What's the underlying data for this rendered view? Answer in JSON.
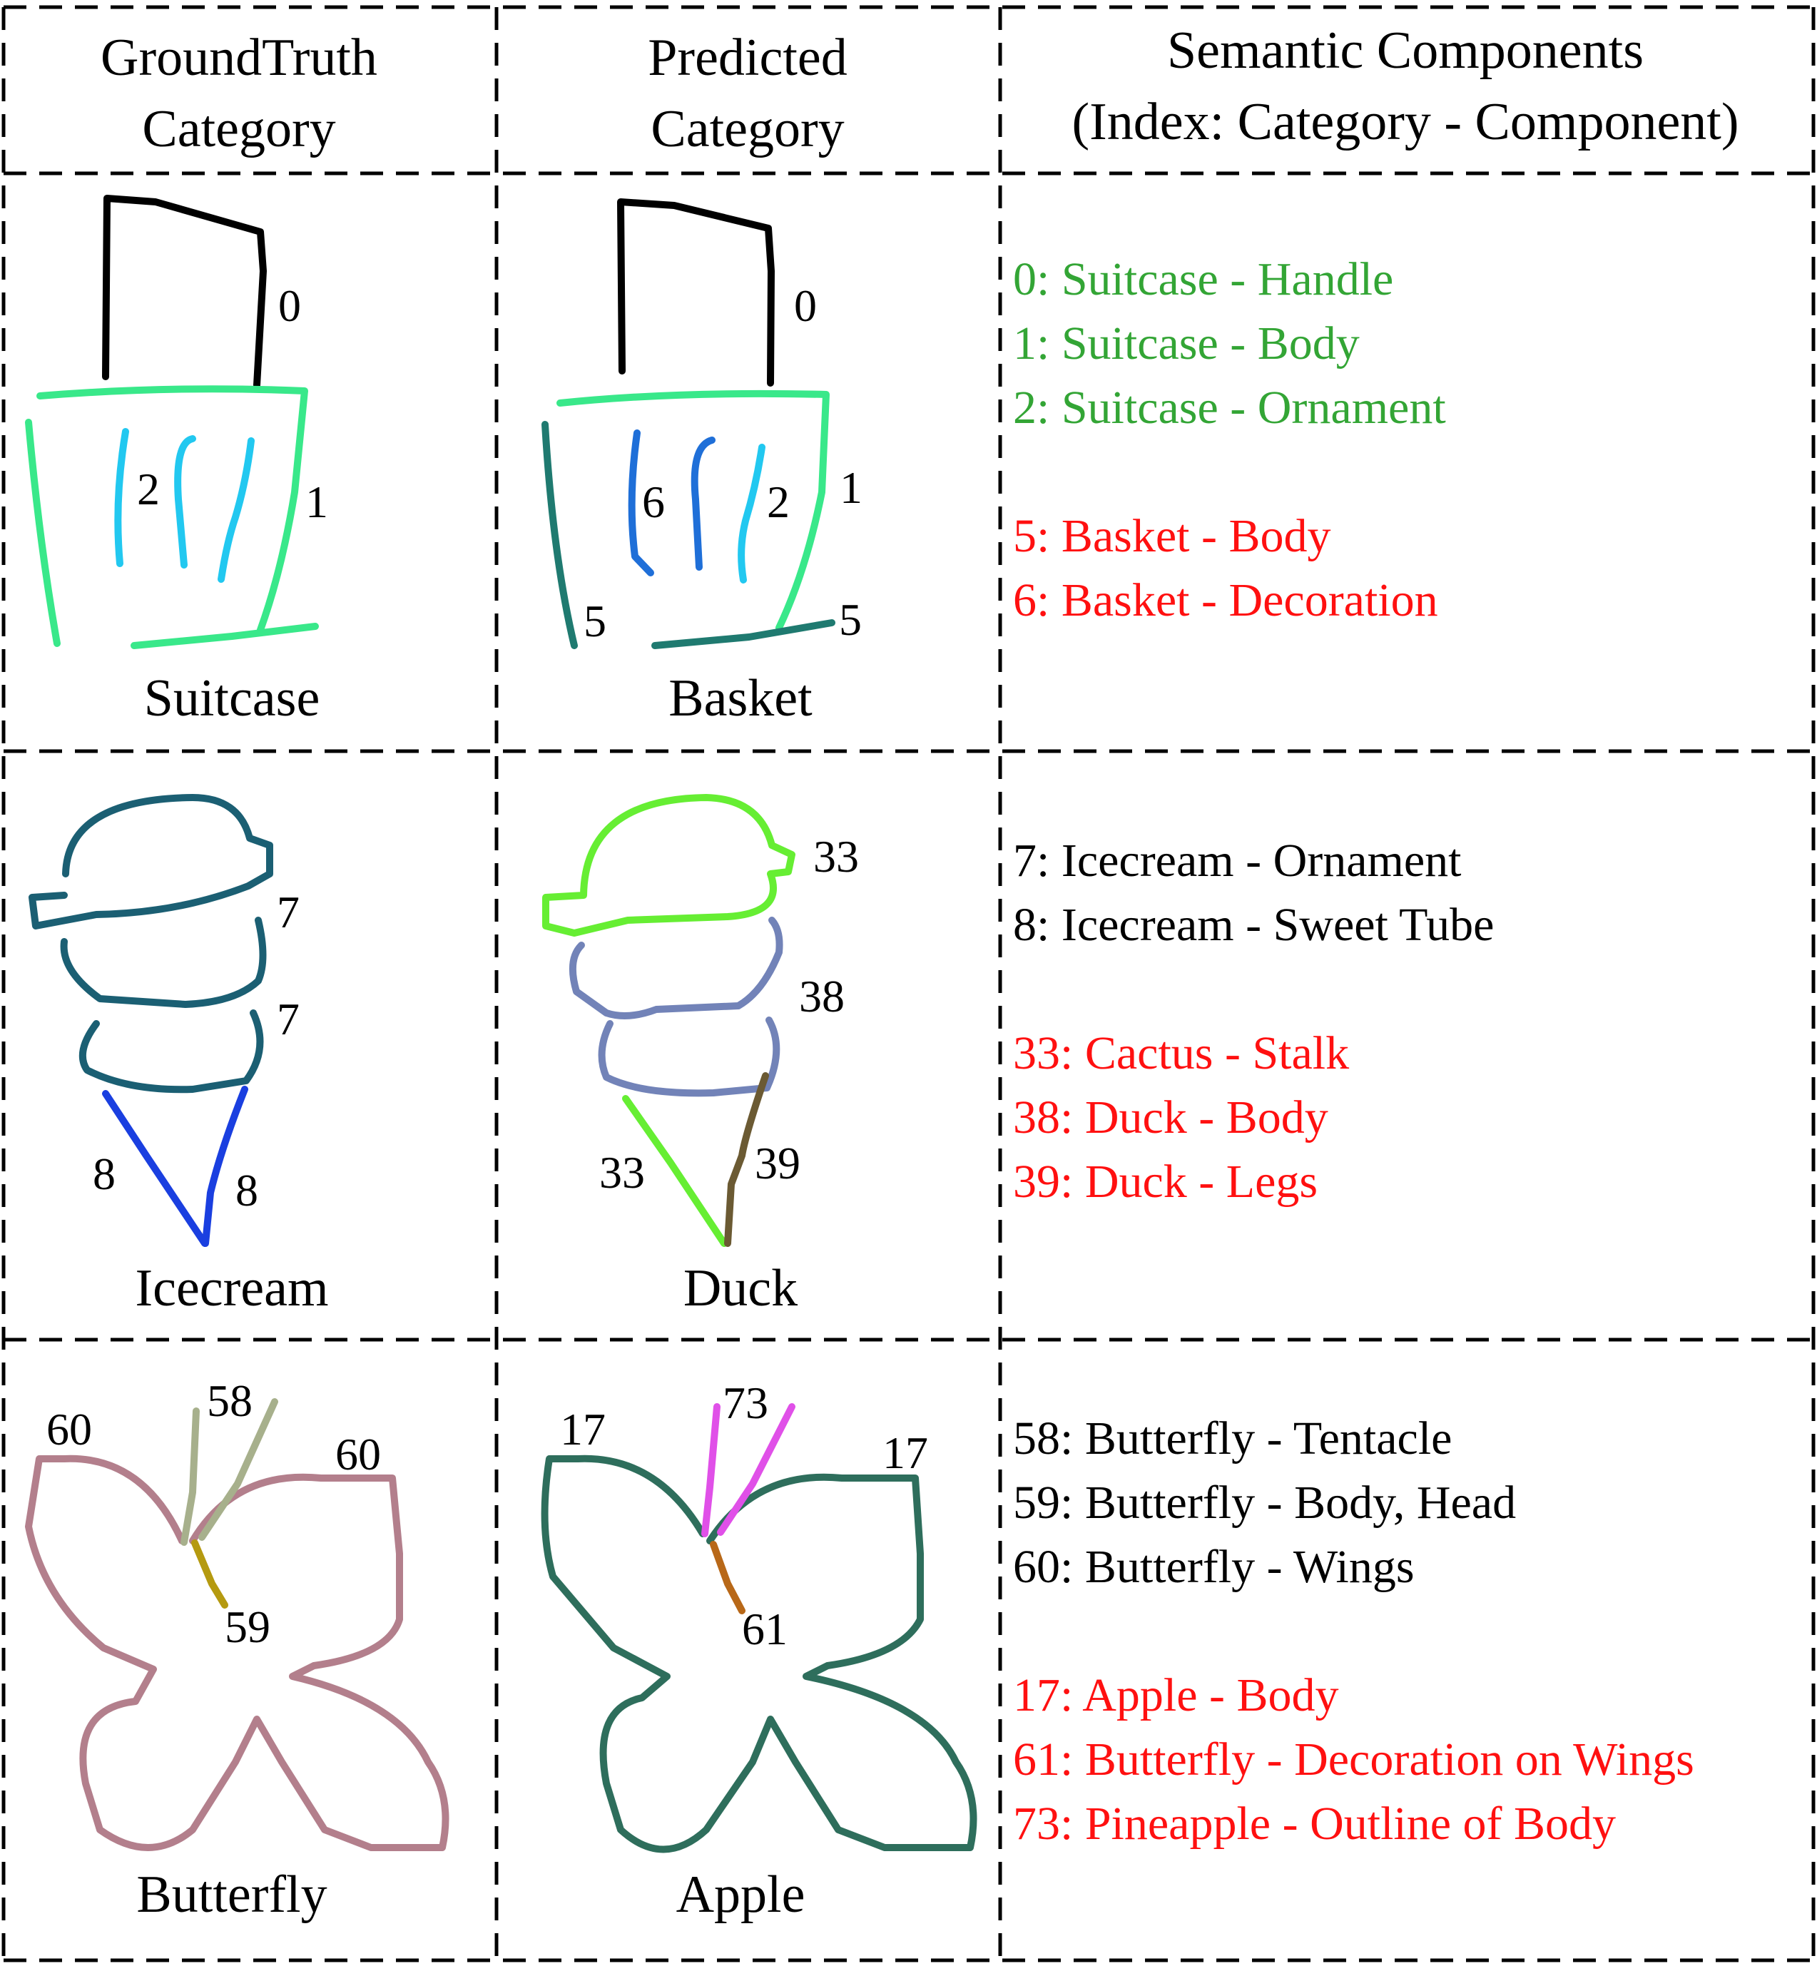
{
  "headers": {
    "groundtruth": [
      "GroundTruth",
      "Category"
    ],
    "predicted": [
      "Predicted",
      "Category"
    ],
    "components": [
      "Semantic Components",
      "(Index: Category - Component)"
    ]
  },
  "colors": {
    "correct": "#33a535",
    "wrong": "#ff1010",
    "neutral": "#000000",
    "suitcase_handle": "#000000",
    "suitcase_body": "#39e88a",
    "suitcase_ornament": "#22c8f0",
    "basket_body": "#1f7a70",
    "basket_decoration": "#1f6fd8",
    "icecream_ornament": "#1b5f73",
    "icecream_tube": "#1a3fe0",
    "cactus_stalk": "#66ee33",
    "duck_body": "#7283b8",
    "duck_legs": "#6b5a33",
    "butterfly_tentacle": "#a7b08c",
    "butterfly_body": "#b59a10",
    "butterfly_wings": "#b37f8c",
    "apple_body": "#2e6e5c",
    "pineapple_outline": "#e050e8",
    "butterfly_decoration": "#b86818"
  },
  "rows": [
    {
      "groundtruth": {
        "caption": "Suitcase",
        "labels": [
          "0",
          "1",
          "2"
        ]
      },
      "predicted": {
        "caption": "Basket",
        "labels": [
          "0",
          "6",
          "2",
          "1",
          "5",
          "5"
        ]
      },
      "components": [
        {
          "text": "0: Suitcase - Handle",
          "status": "correct"
        },
        {
          "text": "1: Suitcase - Body",
          "status": "correct"
        },
        {
          "text": "2: Suitcase - Ornament",
          "status": "correct"
        },
        {
          "text": "5: Basket - Body",
          "status": "wrong"
        },
        {
          "text": "6: Basket - Decoration",
          "status": "wrong"
        }
      ]
    },
    {
      "groundtruth": {
        "caption": "Icecream",
        "labels": [
          "7",
          "7",
          "8",
          "8"
        ]
      },
      "predicted": {
        "caption": "Duck",
        "labels": [
          "33",
          "38",
          "33",
          "39"
        ]
      },
      "components": [
        {
          "text": "7: Icecream - Ornament",
          "status": "neutral"
        },
        {
          "text": "8: Icecream - Sweet Tube",
          "status": "neutral"
        },
        {
          "text": "33: Cactus - Stalk",
          "status": "wrong"
        },
        {
          "text": "38: Duck - Body",
          "status": "wrong"
        },
        {
          "text": "39: Duck - Legs",
          "status": "wrong"
        }
      ]
    },
    {
      "groundtruth": {
        "caption": "Butterfly",
        "labels": [
          "60",
          "58",
          "60",
          "59"
        ]
      },
      "predicted": {
        "caption": "Apple",
        "labels": [
          "17",
          "73",
          "17",
          "61"
        ]
      },
      "components": [
        {
          "text": "58: Butterfly - Tentacle",
          "status": "neutral"
        },
        {
          "text": "59: Butterfly - Body, Head",
          "status": "neutral"
        },
        {
          "text": "60: Butterfly - Wings",
          "status": "neutral"
        },
        {
          "text": "17: Apple  - Body",
          "status": "wrong"
        },
        {
          "text": "61: Butterfly - Decoration on Wings",
          "status": "wrong"
        },
        {
          "text": "73: Pineapple - Outline of Body",
          "status": "wrong"
        }
      ]
    }
  ]
}
